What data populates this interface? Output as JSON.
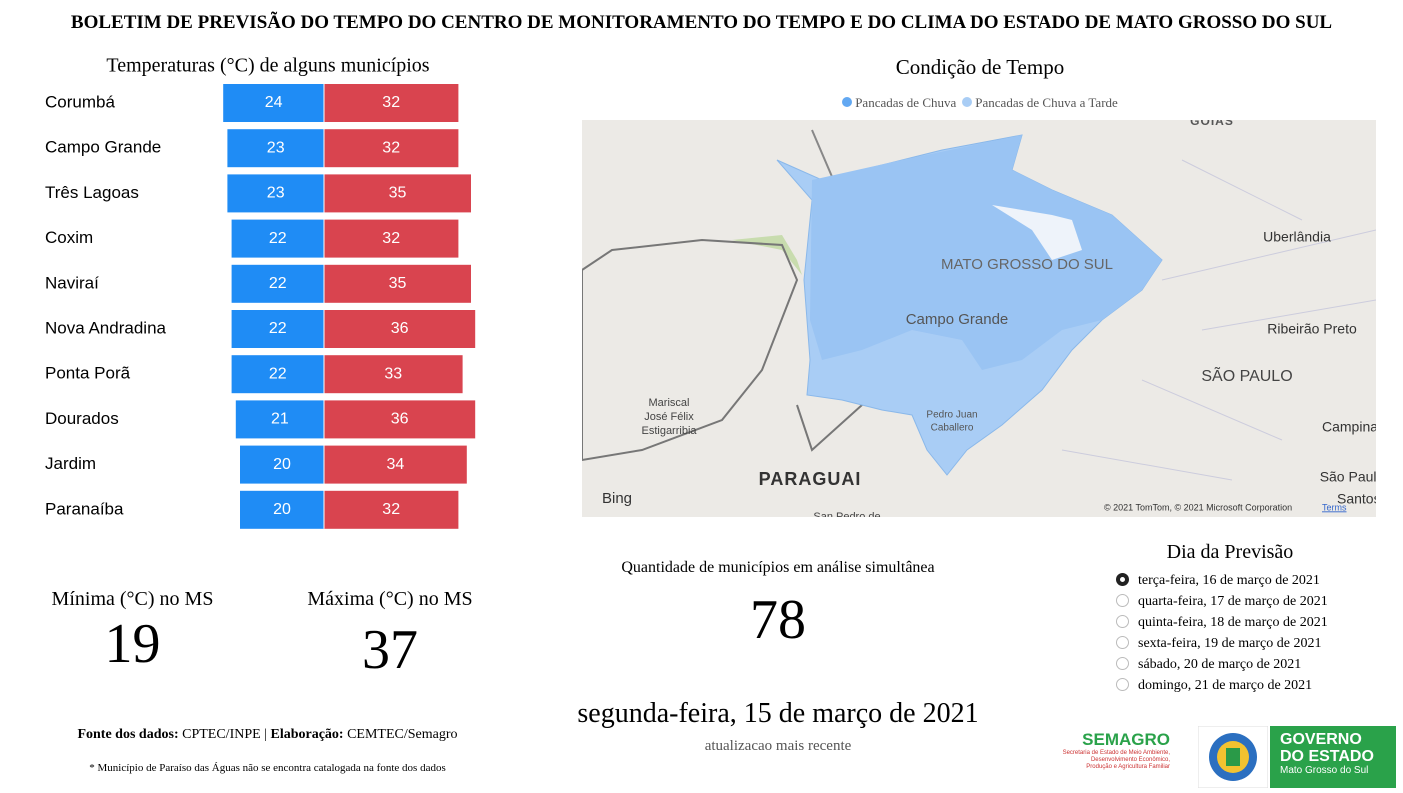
{
  "header": {
    "title": "BOLETIM DE PREVISÃO DO TEMPO DO CENTRO DE MONITORAMENTO DO TEMPO E DO CLIMA DO ESTADO DE MATO GROSSO DO SUL"
  },
  "chart_data": {
    "type": "bar",
    "title": "Temperaturas (°C) de alguns municípios",
    "categories": [
      "Corumbá",
      "Campo Grande",
      "Três Lagoas",
      "Coxim",
      "Naviraí",
      "Nova Andradina",
      "Ponta Porã",
      "Dourados",
      "Jardim",
      "Paranaíba"
    ],
    "series": [
      {
        "color": "#1f8cf5",
        "values": [
          24,
          23,
          23,
          22,
          22,
          22,
          22,
          21,
          20,
          20
        ]
      },
      {
        "color": "#d9444f",
        "values": [
          32,
          32,
          35,
          32,
          35,
          36,
          33,
          36,
          34,
          32
        ]
      }
    ]
  },
  "map": {
    "title": "Condição de Tempo",
    "legend": [
      {
        "name": "Pancadas de Chuva",
        "color": "#62a8f2"
      },
      {
        "name": "Pancadas de Chuva a Tarde",
        "color": "#a9cdf5"
      }
    ],
    "labels": [
      "GOIÁS",
      "Uberlândia",
      "MATO GROSSO DO SUL",
      "Campo Grande",
      "Ribeirão Preto",
      "SÃO PAULO",
      "Mariscal",
      "José Félix",
      "Estigarribia",
      "Pedro Juan",
      "Caballero",
      "Campinas",
      "São Paulo",
      "Santos",
      "PARAGUAI",
      "San Pedro de"
    ],
    "brand": "Bing",
    "copyright": "© 2021 TomTom, © 2021 Microsoft Corporation",
    "terms": "Terms"
  },
  "stats": {
    "min_label": "Mínima (°C) no MS",
    "min": 19,
    "max_label": "Máxima (°C) no MS",
    "max": 37,
    "count_label": "Quantidade de municípios em análise simultânea",
    "count": 78
  },
  "forecast_day": {
    "title": "Dia da Previsão",
    "options": [
      "terça-feira, 16 de março de 2021",
      "quarta-feira, 17 de março de 2021",
      "quinta-feira, 18 de março de 2021",
      "sexta-feira, 19 de março de 2021",
      "sábado, 20 de março de 2021",
      "domingo, 21 de março de 2021"
    ],
    "selected": 0
  },
  "update": {
    "date": "segunda-feira, 15 de março de 2021",
    "caption": "atualizacao mais recente"
  },
  "footer": {
    "source_label": "Fonte dos dados:",
    "source": "CPTEC/INPE |",
    "made_label": "Elaboração:",
    "made": "CEMTEC/Semagro",
    "note": "* Município de Paraíso das Águas não se encontra catalogada na fonte dos dados"
  },
  "logos": {
    "semagro": "SEMAGRO",
    "semagro_lines": [
      "Secretaria de Estado de Meio Ambiente,",
      "Desenvolvimento Econômico,",
      "Produção e Agricultura Familiar"
    ],
    "gov_lines": [
      "GOVERNO",
      "DO ESTADO"
    ],
    "gov_sub": "Mato Grosso do Sul"
  }
}
